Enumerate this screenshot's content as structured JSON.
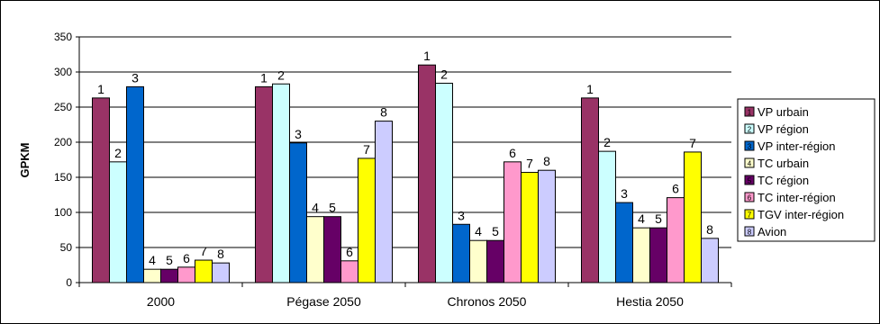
{
  "chart_data": {
    "type": "bar",
    "title": "",
    "xlabel": "",
    "ylabel": "GPKM",
    "ylim": [
      0,
      350
    ],
    "yticks": [
      0,
      50,
      100,
      150,
      200,
      250,
      300,
      350
    ],
    "grid": "horizontal",
    "legend_position": "right",
    "categories": [
      "2000",
      "Pégase 2050",
      "Chronos 2050",
      "Hestia 2050"
    ],
    "series": [
      {
        "name": "VP urbain",
        "label": "1",
        "color": "#993366",
        "values": [
          263,
          279,
          310,
          263
        ]
      },
      {
        "name": "VP région",
        "label": "2",
        "color": "#CCFFFF",
        "values": [
          172,
          283,
          284,
          187
        ]
      },
      {
        "name": "VP inter-région",
        "label": "3",
        "color": "#0066CC",
        "values": [
          279,
          199,
          83,
          114
        ]
      },
      {
        "name": "TC urbain",
        "label": "4",
        "color": "#FFFFCC",
        "values": [
          19,
          94,
          60,
          78
        ]
      },
      {
        "name": "TC région",
        "label": "5",
        "color": "#660066",
        "values": [
          19,
          94,
          60,
          78
        ]
      },
      {
        "name": "TC inter-région",
        "label": "6",
        "color": "#FF99CC",
        "values": [
          22,
          31,
          172,
          121
        ]
      },
      {
        "name": "TGV inter-région",
        "label": "7",
        "color": "#FFFF00",
        "values": [
          32,
          177,
          157,
          186
        ]
      },
      {
        "name": "Avion",
        "label": "8",
        "color": "#CCCCFF",
        "values": [
          28,
          230,
          160,
          63
        ]
      }
    ]
  }
}
